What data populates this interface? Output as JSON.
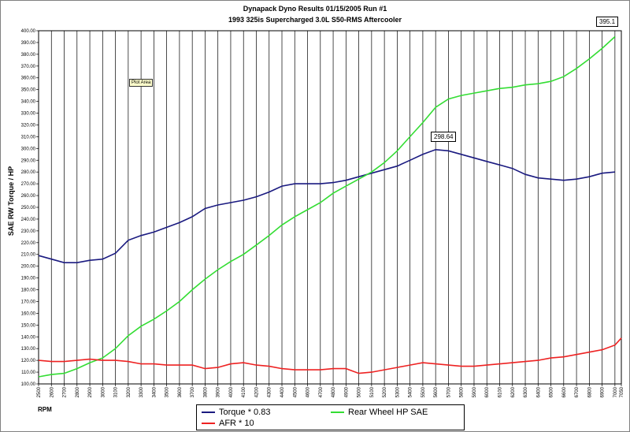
{
  "chart_data": {
    "type": "line",
    "title": "Dynapack Dyno Results 01/15/2005 Run #1",
    "subtitle": "1993 325is Supercharged 3.0L S50-RMS Aftercooler",
    "xlabel": "RPM",
    "ylabel": "SAE RW Torque / HP",
    "ylim": [
      100,
      400
    ],
    "xlim": [
      2500,
      7050
    ],
    "grid": "vertical",
    "legend_position": "bottom",
    "plot_area_label": "Plot Area",
    "x_ticks": [
      "2500",
      "2600",
      "2700",
      "2800",
      "2900",
      "3000",
      "3100",
      "3200",
      "3300",
      "3400",
      "3500",
      "3600",
      "3700",
      "3800",
      "3900",
      "4000",
      "4100",
      "4200",
      "4300",
      "4400",
      "4500",
      "4600",
      "4700",
      "4800",
      "4900",
      "5000",
      "5100",
      "5200",
      "5300",
      "5400",
      "5500",
      "5600",
      "5700",
      "5800",
      "5900",
      "6000",
      "6100",
      "6200",
      "6300",
      "6400",
      "6500",
      "6600",
      "6700",
      "6800",
      "6900",
      "7000",
      "7050"
    ],
    "y_ticks": [
      "100.00",
      "110.00",
      "120.00",
      "130.00",
      "140.00",
      "150.00",
      "160.00",
      "170.00",
      "180.00",
      "190.00",
      "200.00",
      "210.00",
      "220.00",
      "230.00",
      "240.00",
      "250.00",
      "260.00",
      "270.00",
      "280.00",
      "290.00",
      "300.00",
      "310.00",
      "320.00",
      "330.00",
      "340.00",
      "350.00",
      "360.00",
      "370.00",
      "380.00",
      "390.00",
      "400.00"
    ],
    "x": [
      2500,
      2600,
      2700,
      2800,
      2900,
      3000,
      3100,
      3200,
      3300,
      3400,
      3500,
      3600,
      3700,
      3800,
      3900,
      4000,
      4100,
      4200,
      4300,
      4400,
      4500,
      4600,
      4700,
      4800,
      4900,
      5000,
      5100,
      5200,
      5300,
      5400,
      5500,
      5600,
      5700,
      5800,
      5900,
      6000,
      6100,
      6200,
      6300,
      6400,
      6500,
      6600,
      6700,
      6800,
      6900,
      7000
    ],
    "series": [
      {
        "name": "Torque * 0.83",
        "color": "#1a1a80",
        "values": [
          209,
          206,
          203,
          203,
          205,
          206,
          211,
          222,
          226,
          229,
          233,
          237,
          242,
          249,
          252,
          254,
          256,
          259,
          263,
          268,
          270,
          270,
          270,
          271,
          273,
          276,
          279,
          282,
          285,
          290,
          295,
          299,
          298,
          295,
          292,
          289,
          286,
          283,
          278,
          275,
          274,
          273,
          274,
          276,
          279,
          280
        ]
      },
      {
        "name": "Rear Wheel HP SAE",
        "color": "#33dd33",
        "values": [
          106,
          108,
          109,
          113,
          118,
          122,
          130,
          141,
          149,
          155,
          162,
          170,
          180,
          189,
          197,
          204,
          210,
          218,
          226,
          235,
          242,
          248,
          254,
          262,
          268,
          274,
          280,
          288,
          298,
          310,
          322,
          335,
          342,
          345,
          347,
          349,
          351,
          352,
          354,
          355,
          357,
          361,
          368,
          376,
          385,
          395
        ]
      },
      {
        "name": "AFR * 10",
        "color": "#ee2222",
        "values": [
          120,
          119,
          119,
          120,
          121,
          120,
          120,
          119,
          117,
          117,
          116,
          116,
          116,
          113,
          114,
          117,
          118,
          116,
          115,
          113,
          112,
          112,
          112,
          113,
          113,
          109,
          110,
          112,
          114,
          116,
          118,
          117,
          116,
          115,
          115,
          116,
          117,
          118,
          119,
          120,
          122,
          123,
          125,
          127,
          129,
          133
        ]
      }
    ],
    "afr_end": {
      "x": 7050,
      "value": 139
    },
    "callouts": [
      {
        "series": "Torque * 0.83",
        "x": 5650,
        "label": "298.64"
      },
      {
        "series": "Rear Wheel HP SAE",
        "x": 7000,
        "label": "395.1"
      }
    ]
  }
}
